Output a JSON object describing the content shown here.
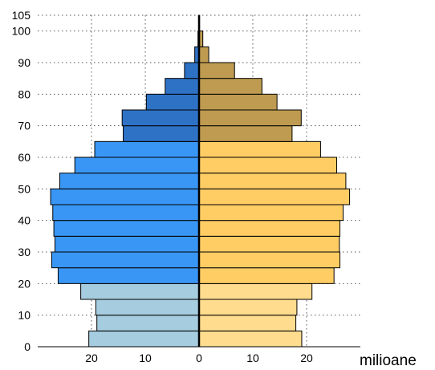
{
  "chart_data": {
    "type": "bar",
    "orientation": "horizontal-population-pyramid",
    "title": "",
    "xlabel": "milioane",
    "ylabel": "",
    "grid": true,
    "ylim": [
      0,
      105
    ],
    "xlim": [
      -30,
      30
    ],
    "y_ticks": [
      0,
      10,
      20,
      30,
      40,
      50,
      60,
      70,
      80,
      90,
      100,
      105
    ],
    "x_ticks": [
      -20,
      -10,
      0,
      10,
      20
    ],
    "x_tick_labels": [
      "20",
      "10",
      "0",
      "10",
      "20"
    ],
    "age_groups": [
      0,
      5,
      10,
      15,
      20,
      25,
      30,
      35,
      40,
      45,
      50,
      55,
      60,
      65,
      70,
      75,
      80,
      85,
      90,
      95,
      100
    ],
    "bin_width": 5,
    "series": [
      {
        "side": "left",
        "values": [
          20.5,
          19.0,
          19.2,
          22.0,
          26.2,
          27.4,
          26.8,
          27.0,
          27.2,
          27.6,
          25.9,
          23.1,
          19.4,
          14.1,
          14.3,
          9.8,
          6.3,
          2.7,
          0.8,
          0.2,
          0.05
        ]
      },
      {
        "side": "right",
        "values": [
          19.1,
          18.0,
          18.2,
          21.0,
          25.1,
          26.2,
          26.1,
          26.2,
          26.8,
          28.0,
          27.3,
          25.6,
          22.6,
          17.3,
          19.0,
          14.5,
          11.7,
          6.6,
          1.8,
          0.7,
          0.1
        ]
      }
    ],
    "colors": {
      "left_young": "#a6cce0",
      "left_working": "#3a96f5",
      "left_old": "#2e72c6",
      "right_young": "#ffdc8e",
      "right_working": "#ffcd64",
      "right_old": "#be9b50",
      "edge": "#000000",
      "grid": "#555555"
    }
  }
}
